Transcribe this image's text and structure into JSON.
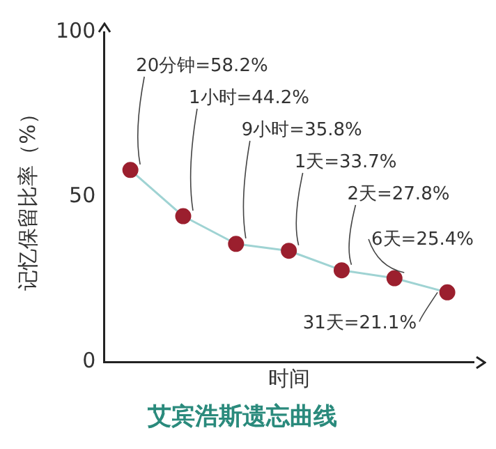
{
  "chart_data": {
    "type": "line",
    "title": "艾宾浩斯遗忘曲线",
    "xlabel": "时间",
    "ylabel": "记忆保留比率（%）",
    "categories": [
      null,
      null,
      null,
      null,
      null,
      null,
      null
    ],
    "series": [
      {
        "color": "#9fd3d3",
        "colors": [
          "#9b1f2e",
          "#9b1f2e",
          "#9b1f2e",
          "#9b1f2e",
          "#9b1f2e",
          "#9b1f2e",
          "#9b1f2e"
        ],
        "values": [
          58.2,
          44.2,
          35.8,
          33.7,
          27.8,
          25.4,
          21.1
        ],
        "value_labels": [
          "20分钟=58.2%",
          "1小时=44.2%",
          "9小时=35.8%",
          "1天=33.7%",
          "2天=27.8%",
          "6天=25.4%",
          "31天=21.1%"
        ]
      }
    ],
    "marker": "circle",
    "line_style": "solid",
    "ylim": [
      0,
      100
    ],
    "yticks": [
      0,
      50,
      100
    ],
    "grid": false,
    "legend": false,
    "tick_labels": "y"
  }
}
